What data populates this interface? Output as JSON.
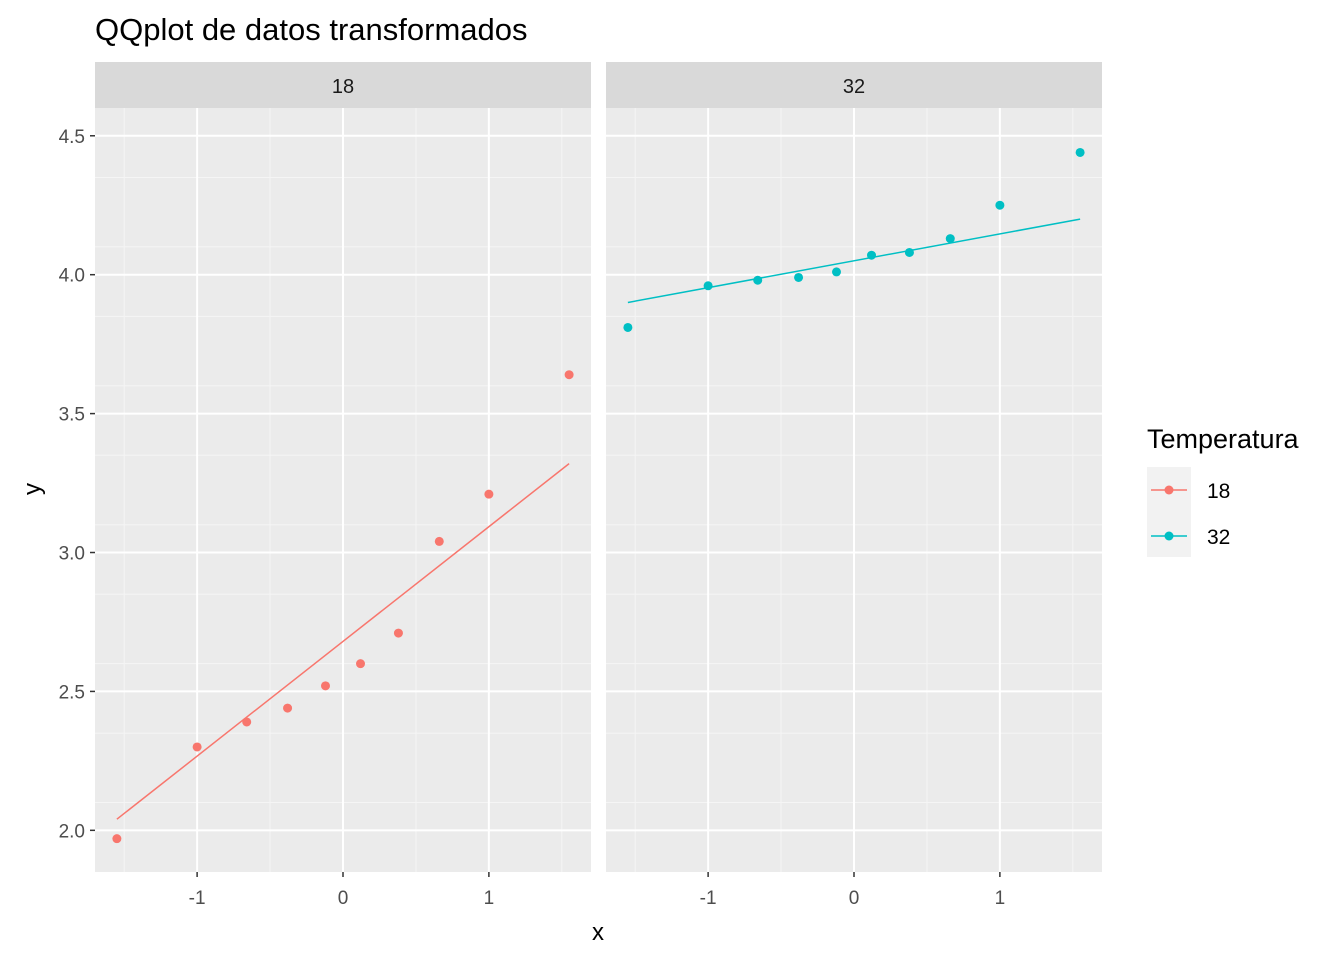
{
  "chart_data": {
    "type": "scatter",
    "title": "QQplot de datos transformados",
    "xlabel": "x",
    "ylabel": "y",
    "xlim": [
      -1.7,
      1.7
    ],
    "ylim": [
      1.85,
      4.6
    ],
    "x_ticks": [
      -1,
      0,
      1
    ],
    "x_tick_labels": [
      "-1",
      "0",
      "1"
    ],
    "y_ticks": [
      2.0,
      2.5,
      3.0,
      3.5,
      4.0,
      4.5
    ],
    "y_tick_labels": [
      "2.0",
      "2.5",
      "3.0",
      "3.5",
      "4.0",
      "4.5"
    ],
    "grid": true,
    "legend": {
      "title": "Temperatura",
      "position": "right",
      "entries": [
        "18",
        "32"
      ]
    },
    "facets": [
      {
        "label": "18",
        "color": "#F8766D",
        "points": [
          {
            "x": -1.55,
            "y": 1.97
          },
          {
            "x": -1.0,
            "y": 2.3
          },
          {
            "x": -0.66,
            "y": 2.39
          },
          {
            "x": -0.38,
            "y": 2.44
          },
          {
            "x": -0.12,
            "y": 2.52
          },
          {
            "x": 0.12,
            "y": 2.6
          },
          {
            "x": 0.38,
            "y": 2.71
          },
          {
            "x": 0.66,
            "y": 3.04
          },
          {
            "x": 1.0,
            "y": 3.21
          },
          {
            "x": 1.55,
            "y": 3.64
          }
        ],
        "line": [
          {
            "x": -1.55,
            "y": 2.04
          },
          {
            "x": 1.55,
            "y": 3.32
          }
        ]
      },
      {
        "label": "32",
        "color": "#00BFC4",
        "points": [
          {
            "x": -1.55,
            "y": 3.81
          },
          {
            "x": -1.0,
            "y": 3.96
          },
          {
            "x": -0.66,
            "y": 3.98
          },
          {
            "x": -0.38,
            "y": 3.99
          },
          {
            "x": -0.12,
            "y": 4.01
          },
          {
            "x": 0.12,
            "y": 4.07
          },
          {
            "x": 0.38,
            "y": 4.08
          },
          {
            "x": 0.66,
            "y": 4.13
          },
          {
            "x": 1.0,
            "y": 4.25
          },
          {
            "x": 1.55,
            "y": 4.44
          }
        ],
        "line": [
          {
            "x": -1.55,
            "y": 3.9
          },
          {
            "x": 1.55,
            "y": 4.2
          }
        ]
      }
    ]
  }
}
